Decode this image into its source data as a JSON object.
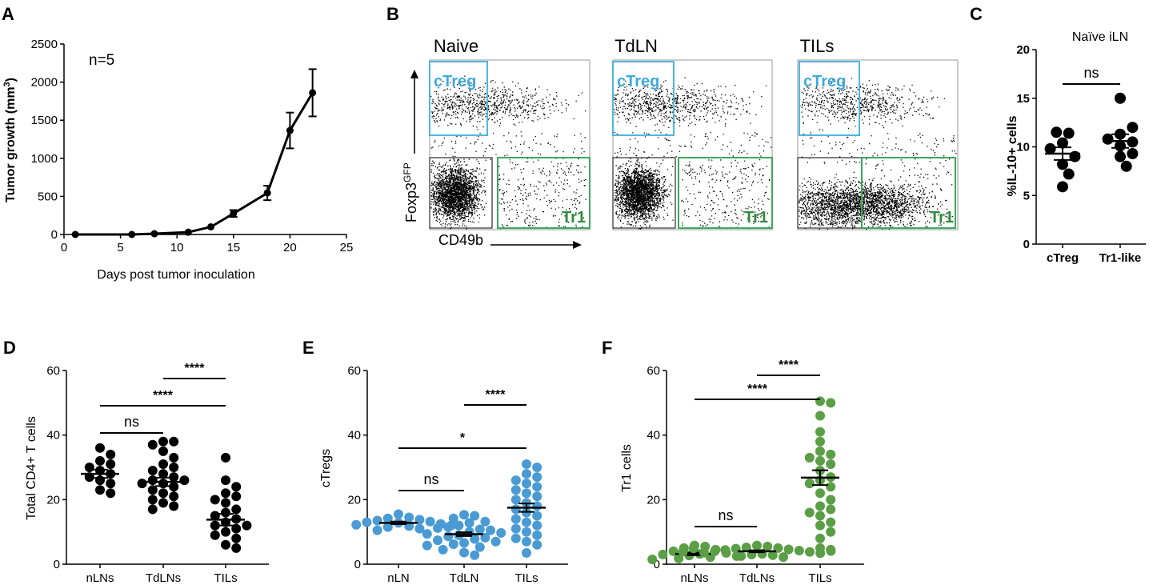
{
  "colors": {
    "black": "#000000",
    "blue": "#4a9bd4",
    "green": "#5a9e45",
    "ctreg_box": "#4cb8e0",
    "tr1_box": "#3aaa5c",
    "tr1_text": "#2f8a3f"
  },
  "panel_labels": {
    "a": "A",
    "b": "B",
    "c": "C",
    "d": "D",
    "e": "E",
    "f": "F"
  },
  "chart_data": [
    {
      "id": "A",
      "type": "line",
      "title": "n=5",
      "xlabel": "Days post tumor inoculation",
      "ylabel_main": "Tumor growth (mm",
      "ylabel_sup": "3",
      "ylabel_end": ")",
      "xlim": [
        0,
        25
      ],
      "ylim": [
        0,
        2500
      ],
      "xticks": [
        0,
        5,
        10,
        15,
        20,
        25
      ],
      "yticks": [
        0,
        500,
        1000,
        1500,
        2000,
        2500
      ],
      "x": [
        1,
        6,
        8,
        11,
        13,
        15,
        18,
        20,
        22
      ],
      "y": [
        0,
        0,
        10,
        30,
        100,
        275,
        545,
        1365,
        1860
      ],
      "err": [
        0,
        0,
        0,
        0,
        0,
        45,
        95,
        235,
        310
      ]
    },
    {
      "id": "B",
      "type": "scatter",
      "plots": [
        "Naive",
        "TdLN",
        "TILs"
      ],
      "ylabel_main": "Foxp3",
      "ylabel_sup": "GFP",
      "xlabel": "CD49b",
      "gate_top": "cTreg",
      "gate_bottom": "Tr1"
    },
    {
      "id": "C",
      "type": "scatter",
      "title": "Naïve iLN",
      "ylabel": "%IL-10+ cells",
      "ylim": [
        0,
        20
      ],
      "yticks": [
        0,
        5,
        10,
        15,
        20
      ],
      "categories": [
        "cTreg",
        "Tr1-like"
      ],
      "values": [
        [
          8.2,
          9.0,
          10.4,
          11.4,
          11.5,
          9.8,
          7.2,
          5.9
        ],
        [
          9.0,
          10.1,
          10.5,
          11.3,
          12.0,
          15.0,
          10.8,
          8.0,
          9.3
        ]
      ],
      "means": [
        9.3,
        10.6
      ],
      "sems": [
        0.65,
        0.7
      ],
      "sig": "ns"
    },
    {
      "id": "D",
      "type": "scatter",
      "ylabel": "Total CD4+ T cells",
      "ylim": [
        0,
        60
      ],
      "yticks": [
        0,
        20,
        40,
        60
      ],
      "categories": [
        "nLNs",
        "TdLNs",
        "TILs"
      ],
      "means": [
        28.0,
        25.5,
        13.8
      ],
      "sems": [
        1.3,
        1.3,
        1.8
      ],
      "values": [
        [
          36,
          34,
          32,
          31,
          30,
          29,
          28,
          27,
          26,
          25,
          23,
          22
        ],
        [
          38,
          38,
          37,
          35,
          33,
          31,
          30,
          29,
          28,
          27,
          26,
          26,
          25,
          25,
          24,
          23,
          22,
          21,
          20,
          19,
          18,
          17
        ],
        [
          33,
          26,
          24,
          22,
          21,
          20,
          19,
          17,
          16,
          15,
          14,
          13,
          12,
          12,
          11,
          10,
          9,
          8,
          6,
          5
        ]
      ],
      "sigs": [
        {
          "text": "ns"
        },
        {
          "text": "****"
        },
        {
          "text": "****"
        }
      ]
    },
    {
      "id": "E",
      "type": "scatter",
      "ylabel": "cTregs",
      "ylim": [
        0,
        60
      ],
      "yticks": [
        0,
        20,
        40,
        60
      ],
      "categories": [
        "nLN",
        "TdLN",
        "TILs"
      ],
      "means": [
        12.8,
        9.3,
        17.5
      ],
      "sems": [
        0.4,
        0.6,
        1.3
      ],
      "values": [
        [
          15.5,
          14.5,
          14.2,
          13.8,
          13.5,
          13.2,
          13.0,
          12.8,
          12.5,
          12.2,
          12.0,
          11.8,
          11.5,
          11.0,
          10.5
        ],
        [
          15.3,
          15.0,
          14.2,
          13.2,
          12.8,
          12.0,
          11.5,
          11.2,
          10.8,
          10.5,
          10.0,
          9.7,
          9.4,
          9.0,
          8.6,
          8.2,
          7.8,
          7.4,
          7.0,
          6.6,
          6.2,
          5.8,
          5.3,
          4.5,
          3.6,
          2.8
        ],
        [
          31,
          30,
          28,
          27,
          26,
          25,
          24,
          23,
          22,
          21,
          20,
          19,
          18,
          17,
          16,
          15,
          14,
          13,
          12,
          11,
          10,
          9,
          8,
          7,
          6,
          3.5
        ]
      ],
      "sigs": [
        {
          "text": "ns"
        },
        {
          "text": "*"
        },
        {
          "text": "****"
        }
      ]
    },
    {
      "id": "F",
      "type": "scatter",
      "ylabel": "Tr1 cells",
      "ylim": [
        0,
        60
      ],
      "yticks": [
        0,
        20,
        40,
        60
      ],
      "categories": [
        "nLNs",
        "TdLNs",
        "TILs"
      ],
      "means": [
        3.2,
        4.0,
        26.8
      ],
      "sems": [
        0.4,
        0.3,
        2.3
      ],
      "values": [
        [
          5.8,
          5.5,
          5.0,
          4.5,
          4.0,
          3.5,
          3.2,
          3.0,
          2.7,
          2.5,
          2.2,
          1.8,
          1.5
        ],
        [
          5.8,
          5.5,
          5.2,
          5.0,
          4.8,
          4.6,
          4.4,
          4.2,
          4.0,
          3.8,
          3.6,
          3.4,
          3.2,
          3.0,
          2.8,
          2.5,
          2.2,
          4.9,
          4.1,
          3.9
        ],
        [
          50.5,
          50,
          46,
          41,
          38,
          35,
          34,
          33,
          32,
          31,
          29,
          27,
          26,
          25,
          24,
          22,
          20,
          18,
          17,
          16,
          15,
          13,
          12,
          10,
          8,
          5,
          4.5
        ]
      ],
      "sigs": [
        {
          "text": "ns"
        },
        {
          "text": "****"
        },
        {
          "text": "****"
        }
      ]
    }
  ]
}
